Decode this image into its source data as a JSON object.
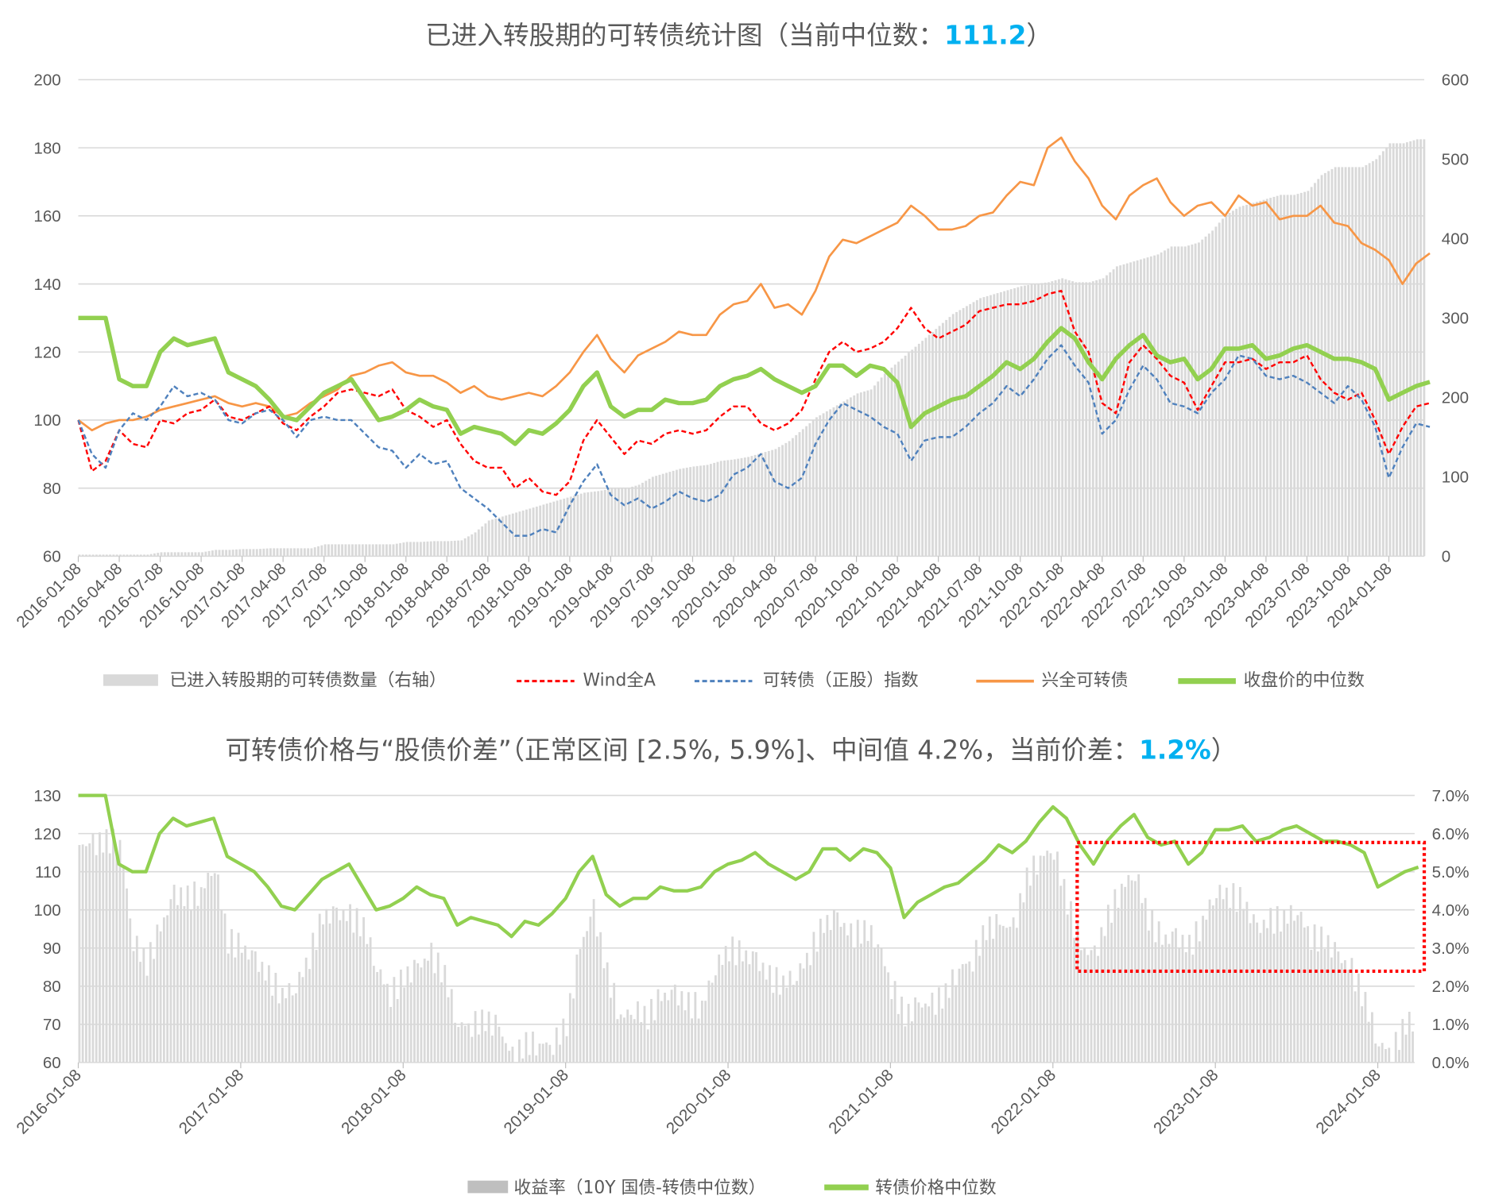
{
  "top_chart": {
    "title_prefix": "已进入转股期的可转债统计图（当前中位数：",
    "title_value": "111.2",
    "title_suffix": "）",
    "legend": [
      "已进入转股期的可转债数量（右轴）",
      "Wind全A",
      "可转债（正股）指数",
      "兴全可转债",
      "收盘价的中位数"
    ],
    "colors": {
      "bars": "#d9d9d9",
      "wind": "#ff0000",
      "cb_index": "#4f81bd",
      "xq": "#f79646",
      "median": "#92d050"
    }
  },
  "bottom_chart": {
    "title_prefix": "可转债价格与“股债价差”（正常区间 [2.5%, 5.9%]、中间值 4.2%，当前价差：",
    "title_value": "1.2%",
    "title_suffix": "）",
    "legend": [
      "收益率（10Y 国债-转债中位数）",
      "转债价格中位数"
    ],
    "colors": {
      "bars": "#d9d9d9",
      "median": "#92d050",
      "box": "#ff0000"
    }
  },
  "chart_data": [
    {
      "type": "line",
      "title": "已进入转股期的可转债统计图（当前中位数：111.2）",
      "x_start": "2016-01",
      "x_step": "month",
      "x_ticks": [
        "2016-01-08",
        "2016-04-08",
        "2016-07-08",
        "2016-10-08",
        "2017-01-08",
        "2017-04-08",
        "2017-07-08",
        "2017-10-08",
        "2018-01-08",
        "2018-04-08",
        "2018-07-08",
        "2018-10-08",
        "2019-01-08",
        "2019-04-08",
        "2019-07-08",
        "2019-10-08",
        "2020-01-08",
        "2020-04-08",
        "2020-07-08",
        "2020-10-08",
        "2021-01-08",
        "2021-04-08",
        "2021-07-08",
        "2021-10-08",
        "2022-01-08",
        "2022-04-08",
        "2022-07-08",
        "2022-10-08",
        "2023-01-08",
        "2023-04-08",
        "2023-07-08",
        "2023-10-08",
        "2024-01-08"
      ],
      "ylim": [
        60,
        200
      ],
      "y_ticks": [
        "200",
        "180",
        "160",
        "140",
        "120",
        "100",
        "80",
        "60"
      ],
      "y2lim": [
        0,
        600
      ],
      "y2_ticks": [
        "600",
        "500",
        "400",
        "300",
        "200",
        "100",
        "0"
      ],
      "series": [
        {
          "name": "已进入转股期的可转债数量（右轴）",
          "type": "bar",
          "axis": "right",
          "values": [
            2,
            2,
            2,
            2,
            2,
            2,
            5,
            5,
            5,
            5,
            8,
            8,
            9,
            9,
            10,
            10,
            10,
            10,
            15,
            15,
            15,
            15,
            15,
            15,
            18,
            18,
            19,
            19,
            20,
            30,
            45,
            50,
            55,
            60,
            65,
            70,
            75,
            80,
            82,
            85,
            85,
            90,
            100,
            105,
            110,
            113,
            115,
            120,
            122,
            125,
            130,
            135,
            145,
            160,
            175,
            185,
            195,
            205,
            210,
            230,
            245,
            260,
            275,
            290,
            305,
            315,
            325,
            330,
            335,
            340,
            343,
            345,
            350,
            345,
            345,
            350,
            365,
            370,
            375,
            380,
            390,
            390,
            395,
            410,
            430,
            440,
            445,
            450,
            455,
            455,
            460,
            480,
            490,
            490,
            490,
            500,
            520,
            520,
            525,
            525
          ]
        },
        {
          "name": "Wind全A",
          "type": "line",
          "axis": "left",
          "values": [
            100,
            85,
            88,
            97,
            93,
            92,
            100,
            99,
            102,
            103,
            106,
            101,
            100,
            102,
            104,
            99,
            97,
            101,
            104,
            108,
            109,
            108,
            107,
            109,
            103,
            101,
            98,
            100,
            93,
            88,
            86,
            86,
            80,
            83,
            79,
            78,
            82,
            94,
            100,
            95,
            90,
            94,
            93,
            96,
            97,
            96,
            97,
            101,
            104,
            104,
            99,
            97,
            99,
            103,
            112,
            120,
            123,
            120,
            121,
            123,
            127,
            133,
            127,
            124,
            126,
            128,
            132,
            133,
            134,
            134,
            135,
            137,
            138,
            126,
            120,
            105,
            102,
            117,
            122,
            118,
            113,
            111,
            103,
            110,
            117,
            117,
            118,
            115,
            117,
            117,
            119,
            112,
            108,
            106,
            108,
            100,
            90,
            98,
            104,
            105
          ]
        },
        {
          "name": "可转债（正股）指数",
          "type": "line",
          "axis": "left",
          "values": [
            100,
            90,
            86,
            97,
            102,
            100,
            104,
            110,
            107,
            108,
            106,
            100,
            99,
            102,
            103,
            100,
            95,
            100,
            101,
            100,
            100,
            96,
            92,
            91,
            86,
            90,
            87,
            88,
            80,
            77,
            74,
            70,
            66,
            66,
            68,
            67,
            75,
            82,
            87,
            78,
            75,
            77,
            74,
            76,
            79,
            77,
            76,
            78,
            84,
            86,
            90,
            82,
            80,
            83,
            93,
            100,
            105,
            103,
            101,
            98,
            96,
            88,
            94,
            95,
            95,
            98,
            102,
            105,
            110,
            107,
            112,
            118,
            122,
            116,
            111,
            96,
            100,
            109,
            116,
            112,
            105,
            104,
            102,
            108,
            112,
            119,
            118,
            113,
            112,
            113,
            111,
            108,
            105,
            110,
            106,
            98,
            83,
            92,
            99,
            98
          ]
        },
        {
          "name": "兴全可转债",
          "type": "line",
          "axis": "left",
          "values": [
            100,
            97,
            99,
            100,
            100,
            101,
            103,
            104,
            105,
            106,
            107,
            105,
            104,
            105,
            104,
            101,
            102,
            105,
            107,
            109,
            113,
            114,
            116,
            117,
            114,
            113,
            113,
            111,
            108,
            110,
            107,
            106,
            107,
            108,
            107,
            110,
            114,
            120,
            125,
            118,
            114,
            119,
            121,
            123,
            126,
            125,
            125,
            131,
            134,
            135,
            140,
            133,
            134,
            131,
            138,
            148,
            153,
            152,
            154,
            156,
            158,
            163,
            160,
            156,
            156,
            157,
            160,
            161,
            166,
            170,
            169,
            180,
            183,
            176,
            171,
            163,
            159,
            166,
            169,
            171,
            164,
            160,
            163,
            164,
            160,
            166,
            163,
            164,
            159,
            160,
            160,
            163,
            158,
            157,
            152,
            150,
            147,
            140,
            146,
            149
          ]
        },
        {
          "name": "收盘价的中位数",
          "type": "line",
          "axis": "left",
          "values": [
            130,
            130,
            130,
            112,
            110,
            110,
            120,
            124,
            122,
            123,
            124,
            114,
            112,
            110,
            106,
            101,
            100,
            104,
            108,
            110,
            112,
            106,
            100,
            101,
            103,
            106,
            104,
            103,
            96,
            98,
            97,
            96,
            93,
            97,
            96,
            99,
            103,
            110,
            114,
            104,
            101,
            103,
            103,
            106,
            105,
            105,
            106,
            110,
            112,
            113,
            115,
            112,
            110,
            108,
            110,
            116,
            116,
            113,
            116,
            115,
            111,
            98,
            102,
            104,
            106,
            107,
            110,
            113,
            117,
            115,
            118,
            123,
            127,
            124,
            117,
            112,
            118,
            122,
            125,
            119,
            117,
            118,
            112,
            115,
            121,
            121,
            122,
            118,
            119,
            121,
            122,
            120,
            118,
            118,
            117,
            115,
            106,
            108,
            110,
            111.2
          ]
        }
      ]
    },
    {
      "type": "bar",
      "title": "可转债价格与“股债价差”（正常区间 [2.5%, 5.9%]、中间值 4.2%，当前价差：1.2%）",
      "x_start": "2016-01",
      "x_step": "month",
      "x_ticks": [
        "2016-01-08",
        "2017-01-08",
        "2018-01-08",
        "2019-01-08",
        "2020-01-08",
        "2021-01-08",
        "2022-01-08",
        "2023-01-08",
        "2024-01-08"
      ],
      "ylim": [
        60,
        130
      ],
      "y_ticks": [
        "130",
        "120",
        "110",
        "100",
        "90",
        "80",
        "70",
        "60"
      ],
      "y2lim": [
        0,
        7
      ],
      "y2_ticks": [
        "7.0%",
        "6.0%",
        "5.0%",
        "4.0%",
        "3.0%",
        "2.0%",
        "1.0%",
        "0.0%"
      ],
      "annotation": {
        "type": "dotted-box",
        "x_range": [
          "2022-03",
          "2024-04"
        ],
        "y2_range": [
          2.4,
          5.7
        ]
      },
      "series": [
        {
          "name": "收益率（10Y 国债-转债中位数）",
          "type": "bar",
          "axis": "right",
          "values": [
            5.7,
            5.7,
            5.8,
            5.8,
            3.2,
            2.6,
            3.5,
            4.4,
            4.3,
            4.5,
            5.2,
            3.2,
            3.0,
            2.7,
            2.2,
            1.8,
            2.0,
            2.8,
            3.8,
            3.9,
            3.8,
            3.6,
            2.5,
            1.8,
            2.2,
            2.5,
            2.8,
            2.3,
            1.0,
            1.0,
            1.1,
            0.9,
            0.1,
            0.5,
            0.5,
            0.5,
            1.0,
            3.0,
            4.0,
            2.3,
            1.2,
            1.4,
            1.2,
            1.7,
            1.8,
            1.5,
            1.5,
            2.5,
            3.0,
            2.8,
            2.7,
            2.2,
            2.1,
            2.3,
            2.9,
            3.6,
            3.8,
            3.3,
            3.5,
            3.2,
            2.0,
            1.2,
            1.5,
            1.5,
            1.8,
            2.5,
            2.7,
            3.5,
            3.6,
            3.5,
            4.8,
            5.4,
            5.6,
            4.2,
            3.0,
            2.8,
            3.8,
            4.6,
            5.0,
            3.8,
            3.2,
            3.3,
            3.0,
            3.7,
            4.5,
            4.4,
            4.2,
            3.5,
            3.7,
            3.8,
            4.0,
            3.3,
            3.2,
            2.8,
            2.4,
            1.6,
            0.5,
            0.3,
            1.0,
            1.2
          ]
        },
        {
          "name": "转债价格中位数",
          "type": "line",
          "axis": "left",
          "same_as": "收盘价的中位数"
        }
      ]
    }
  ]
}
